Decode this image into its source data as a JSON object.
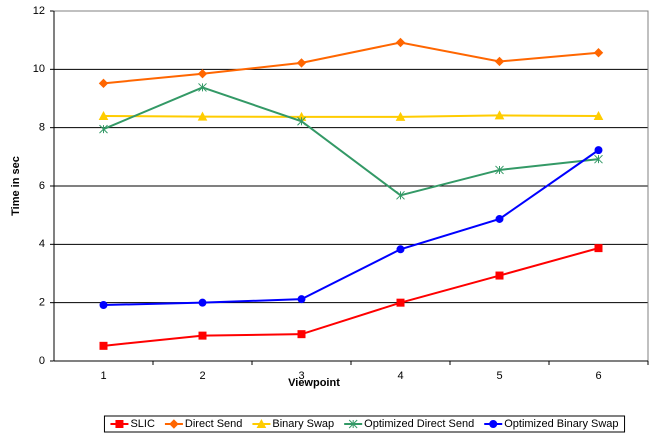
{
  "chart_data": {
    "type": "line",
    "x_label": "Viewpoint",
    "y_label": "Time in sec",
    "categories": [
      "1",
      "2",
      "3",
      "4",
      "5",
      "6"
    ],
    "series": [
      {
        "name": "SLIC",
        "color": "#ff0000",
        "marker": "square",
        "values": [
          0.52,
          0.87,
          0.92,
          2.0,
          2.93,
          3.87
        ]
      },
      {
        "name": "Direct Send",
        "color": "#ff6600",
        "marker": "diamond",
        "values": [
          9.52,
          9.85,
          10.22,
          10.92,
          10.27,
          10.57
        ]
      },
      {
        "name": "Binary Swap",
        "color": "#ffcc00",
        "marker": "triangle",
        "values": [
          8.4,
          8.38,
          8.37,
          8.37,
          8.42,
          8.4
        ]
      },
      {
        "name": "Optimized Direct Send",
        "color": "#339966",
        "marker": "star",
        "values": [
          7.95,
          9.38,
          8.22,
          5.68,
          6.55,
          6.92
        ]
      },
      {
        "name": "Optimized Binary Swap",
        "color": "#0000ff",
        "marker": "circle",
        "values": [
          1.92,
          2.0,
          2.12,
          3.83,
          4.87,
          7.23
        ]
      }
    ],
    "ylim": [
      0,
      12
    ],
    "yticks": [
      0,
      2,
      4,
      6,
      8,
      10,
      12
    ],
    "grid": true,
    "legend": "bottom"
  }
}
